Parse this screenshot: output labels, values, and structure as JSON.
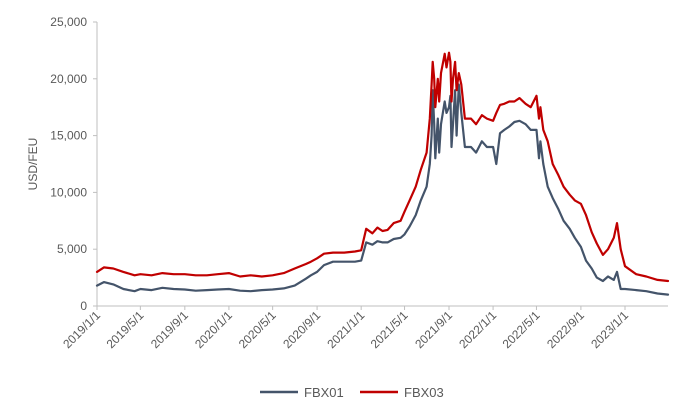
{
  "chart_data": {
    "type": "line",
    "title": "",
    "xlabel": "",
    "ylabel": "USD/FEU",
    "ylim": [
      0,
      25000
    ],
    "y_ticks": [
      0,
      5000,
      10000,
      15000,
      20000,
      25000
    ],
    "y_tick_labels": [
      "0",
      "5,000",
      "10,000",
      "15,000",
      "20,000",
      "25,000"
    ],
    "x_range": [
      "2019-01-01",
      "2023-04-30"
    ],
    "x_ticks": [
      "2019-01-01",
      "2019-05-01",
      "2019-09-01",
      "2020-01-01",
      "2020-05-01",
      "2020-09-01",
      "2021-01-01",
      "2021-05-01",
      "2021-09-01",
      "2022-01-01",
      "2022-05-01",
      "2022-09-01",
      "2023-01-01"
    ],
    "x_tick_labels": [
      "2019/1/1",
      "2019/5/1",
      "2019/9/1",
      "2020/1/1",
      "2020/5/1",
      "2020/9/1",
      "2021/1/1",
      "2021/5/1",
      "2021/9/1",
      "2022/1/1",
      "2022/5/1",
      "2022/9/1",
      "2023/1/1"
    ],
    "grid": false,
    "legend_position": "bottom",
    "series": [
      {
        "name": "FBX01",
        "color": "#44546A",
        "points": [
          [
            "2019-01-01",
            1800
          ],
          [
            "2019-01-20",
            2100
          ],
          [
            "2019-02-15",
            1900
          ],
          [
            "2019-03-15",
            1500
          ],
          [
            "2019-04-15",
            1300
          ],
          [
            "2019-05-01",
            1500
          ],
          [
            "2019-06-01",
            1400
          ],
          [
            "2019-07-01",
            1600
          ],
          [
            "2019-08-01",
            1500
          ],
          [
            "2019-09-01",
            1450
          ],
          [
            "2019-10-01",
            1350
          ],
          [
            "2019-11-01",
            1400
          ],
          [
            "2019-12-01",
            1450
          ],
          [
            "2020-01-01",
            1500
          ],
          [
            "2020-02-01",
            1350
          ],
          [
            "2020-03-01",
            1300
          ],
          [
            "2020-04-01",
            1400
          ],
          [
            "2020-05-01",
            1450
          ],
          [
            "2020-06-01",
            1550
          ],
          [
            "2020-07-01",
            1800
          ],
          [
            "2020-08-01",
            2400
          ],
          [
            "2020-08-15",
            2700
          ],
          [
            "2020-09-01",
            3000
          ],
          [
            "2020-09-20",
            3600
          ],
          [
            "2020-10-15",
            3900
          ],
          [
            "2020-11-15",
            3900
          ],
          [
            "2020-12-15",
            3900
          ],
          [
            "2021-01-01",
            4000
          ],
          [
            "2021-01-15",
            5600
          ],
          [
            "2021-02-01",
            5400
          ],
          [
            "2021-02-15",
            5700
          ],
          [
            "2021-03-01",
            5600
          ],
          [
            "2021-03-15",
            5600
          ],
          [
            "2021-04-01",
            5900
          ],
          [
            "2021-04-20",
            6000
          ],
          [
            "2021-05-01",
            6300
          ],
          [
            "2021-05-15",
            7000
          ],
          [
            "2021-06-01",
            8000
          ],
          [
            "2021-06-15",
            9300
          ],
          [
            "2021-07-01",
            10500
          ],
          [
            "2021-07-10",
            12500
          ],
          [
            "2021-07-15",
            15000
          ],
          [
            "2021-07-18",
            19000
          ],
          [
            "2021-07-22",
            16000
          ],
          [
            "2021-07-25",
            13000
          ],
          [
            "2021-08-01",
            16500
          ],
          [
            "2021-08-05",
            13500
          ],
          [
            "2021-08-10",
            16000
          ],
          [
            "2021-08-20",
            18000
          ],
          [
            "2021-08-25",
            17000
          ],
          [
            "2021-09-01",
            17500
          ],
          [
            "2021-09-05",
            18500
          ],
          [
            "2021-09-08",
            14000
          ],
          [
            "2021-09-12",
            16000
          ],
          [
            "2021-09-18",
            19000
          ],
          [
            "2021-09-22",
            15000
          ],
          [
            "2021-09-28",
            19500
          ],
          [
            "2021-10-05",
            17000
          ],
          [
            "2021-10-15",
            14000
          ],
          [
            "2021-11-01",
            14000
          ],
          [
            "2021-11-15",
            13500
          ],
          [
            "2021-12-01",
            14500
          ],
          [
            "2021-12-15",
            14000
          ],
          [
            "2022-01-01",
            14000
          ],
          [
            "2022-01-10",
            12500
          ],
          [
            "2022-01-20",
            15200
          ],
          [
            "2022-02-01",
            15500
          ],
          [
            "2022-02-15",
            15800
          ],
          [
            "2022-03-01",
            16200
          ],
          [
            "2022-03-15",
            16300
          ],
          [
            "2022-04-01",
            16000
          ],
          [
            "2022-04-15",
            15500
          ],
          [
            "2022-05-01",
            15500
          ],
          [
            "2022-05-08",
            13000
          ],
          [
            "2022-05-12",
            14500
          ],
          [
            "2022-05-20",
            12500
          ],
          [
            "2022-06-01",
            10500
          ],
          [
            "2022-06-15",
            9500
          ],
          [
            "2022-07-01",
            8500
          ],
          [
            "2022-07-15",
            7500
          ],
          [
            "2022-08-01",
            6800
          ],
          [
            "2022-08-15",
            6000
          ],
          [
            "2022-09-01",
            5200
          ],
          [
            "2022-09-15",
            4000
          ],
          [
            "2022-10-01",
            3300
          ],
          [
            "2022-10-15",
            2500
          ],
          [
            "2022-11-01",
            2200
          ],
          [
            "2022-11-15",
            2600
          ],
          [
            "2022-12-01",
            2300
          ],
          [
            "2022-12-10",
            3000
          ],
          [
            "2022-12-20",
            1500
          ],
          [
            "2023-01-01",
            1500
          ],
          [
            "2023-02-01",
            1400
          ],
          [
            "2023-03-01",
            1300
          ],
          [
            "2023-04-01",
            1100
          ],
          [
            "2023-04-30",
            1000
          ]
        ]
      },
      {
        "name": "FBX03",
        "color": "#C00000",
        "points": [
          [
            "2019-01-01",
            3000
          ],
          [
            "2019-01-20",
            3400
          ],
          [
            "2019-02-15",
            3300
          ],
          [
            "2019-03-15",
            3000
          ],
          [
            "2019-04-15",
            2700
          ],
          [
            "2019-05-01",
            2800
          ],
          [
            "2019-06-01",
            2700
          ],
          [
            "2019-07-01",
            2900
          ],
          [
            "2019-08-01",
            2800
          ],
          [
            "2019-09-01",
            2800
          ],
          [
            "2019-10-01",
            2700
          ],
          [
            "2019-11-01",
            2700
          ],
          [
            "2019-12-01",
            2800
          ],
          [
            "2020-01-01",
            2900
          ],
          [
            "2020-02-01",
            2600
          ],
          [
            "2020-03-01",
            2700
          ],
          [
            "2020-04-01",
            2600
          ],
          [
            "2020-05-01",
            2700
          ],
          [
            "2020-06-01",
            2900
          ],
          [
            "2020-07-01",
            3300
          ],
          [
            "2020-08-01",
            3700
          ],
          [
            "2020-08-15",
            3900
          ],
          [
            "2020-09-01",
            4200
          ],
          [
            "2020-09-20",
            4600
          ],
          [
            "2020-10-15",
            4700
          ],
          [
            "2020-11-15",
            4700
          ],
          [
            "2020-12-15",
            4800
          ],
          [
            "2021-01-01",
            4900
          ],
          [
            "2021-01-15",
            6800
          ],
          [
            "2021-02-01",
            6400
          ],
          [
            "2021-02-15",
            6900
          ],
          [
            "2021-03-01",
            6600
          ],
          [
            "2021-03-15",
            6700
          ],
          [
            "2021-04-01",
            7300
          ],
          [
            "2021-04-20",
            7500
          ],
          [
            "2021-05-01",
            8300
          ],
          [
            "2021-05-15",
            9300
          ],
          [
            "2021-06-01",
            10500
          ],
          [
            "2021-06-15",
            12000
          ],
          [
            "2021-07-01",
            13500
          ],
          [
            "2021-07-10",
            16500
          ],
          [
            "2021-07-15",
            19500
          ],
          [
            "2021-07-18",
            21500
          ],
          [
            "2021-07-22",
            20000
          ],
          [
            "2021-07-25",
            17500
          ],
          [
            "2021-08-01",
            20000
          ],
          [
            "2021-08-05",
            18000
          ],
          [
            "2021-08-10",
            20500
          ],
          [
            "2021-08-20",
            22200
          ],
          [
            "2021-08-25",
            21000
          ],
          [
            "2021-09-01",
            22300
          ],
          [
            "2021-09-05",
            21500
          ],
          [
            "2021-09-08",
            18000
          ],
          [
            "2021-09-12",
            20000
          ],
          [
            "2021-09-18",
            21500
          ],
          [
            "2021-09-22",
            19000
          ],
          [
            "2021-09-28",
            20500
          ],
          [
            "2021-10-05",
            19500
          ],
          [
            "2021-10-15",
            16500
          ],
          [
            "2021-11-01",
            16500
          ],
          [
            "2021-11-15",
            16000
          ],
          [
            "2021-12-01",
            16800
          ],
          [
            "2021-12-15",
            16500
          ],
          [
            "2022-01-01",
            16300
          ],
          [
            "2022-01-10",
            17000
          ],
          [
            "2022-01-20",
            17700
          ],
          [
            "2022-02-01",
            17800
          ],
          [
            "2022-02-15",
            18000
          ],
          [
            "2022-03-01",
            18000
          ],
          [
            "2022-03-15",
            18300
          ],
          [
            "2022-04-01",
            17800
          ],
          [
            "2022-04-15",
            17500
          ],
          [
            "2022-05-01",
            18500
          ],
          [
            "2022-05-08",
            16500
          ],
          [
            "2022-05-12",
            17500
          ],
          [
            "2022-05-20",
            15500
          ],
          [
            "2022-06-01",
            14500
          ],
          [
            "2022-06-15",
            12500
          ],
          [
            "2022-07-01",
            11500
          ],
          [
            "2022-07-15",
            10500
          ],
          [
            "2022-08-01",
            9800
          ],
          [
            "2022-08-15",
            9300
          ],
          [
            "2022-09-01",
            9000
          ],
          [
            "2022-09-15",
            8000
          ],
          [
            "2022-10-01",
            6500
          ],
          [
            "2022-10-15",
            5500
          ],
          [
            "2022-11-01",
            4500
          ],
          [
            "2022-11-15",
            5000
          ],
          [
            "2022-12-01",
            6000
          ],
          [
            "2022-12-10",
            7300
          ],
          [
            "2022-12-20",
            5000
          ],
          [
            "2023-01-01",
            3500
          ],
          [
            "2023-02-01",
            2800
          ],
          [
            "2023-03-01",
            2600
          ],
          [
            "2023-04-01",
            2300
          ],
          [
            "2023-04-30",
            2200
          ]
        ]
      }
    ]
  }
}
